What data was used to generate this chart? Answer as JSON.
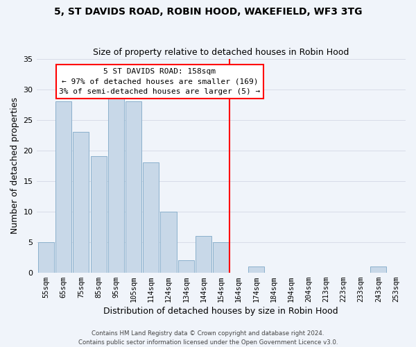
{
  "title": "5, ST DAVIDS ROAD, ROBIN HOOD, WAKEFIELD, WF3 3TG",
  "subtitle": "Size of property relative to detached houses in Robin Hood",
  "xlabel": "Distribution of detached houses by size in Robin Hood",
  "ylabel": "Number of detached properties",
  "bar_color": "#c8d8e8",
  "bar_edge_color": "#8ab0cc",
  "categories": [
    "55sqm",
    "65sqm",
    "75sqm",
    "85sqm",
    "95sqm",
    "105sqm",
    "114sqm",
    "124sqm",
    "134sqm",
    "144sqm",
    "154sqm",
    "164sqm",
    "174sqm",
    "184sqm",
    "194sqm",
    "204sqm",
    "213sqm",
    "223sqm",
    "233sqm",
    "243sqm",
    "253sqm"
  ],
  "values": [
    5,
    28,
    23,
    19,
    29,
    28,
    18,
    10,
    2,
    6,
    5,
    0,
    1,
    0,
    0,
    0,
    0,
    0,
    0,
    1,
    0
  ],
  "ylim": [
    0,
    35
  ],
  "yticks": [
    0,
    5,
    10,
    15,
    20,
    25,
    30,
    35
  ],
  "reference_line_index": 10.5,
  "annotation_label": "5 ST DAVIDS ROAD: 158sqm",
  "annotation_line1": "← 97% of detached houses are smaller (169)",
  "annotation_line2": "3% of semi-detached houses are larger (5) →",
  "footer1": "Contains HM Land Registry data © Crown copyright and database right 2024.",
  "footer2": "Contains public sector information licensed under the Open Government Licence v3.0.",
  "background_color": "#f0f4fa",
  "grid_color": "#d8dce8"
}
